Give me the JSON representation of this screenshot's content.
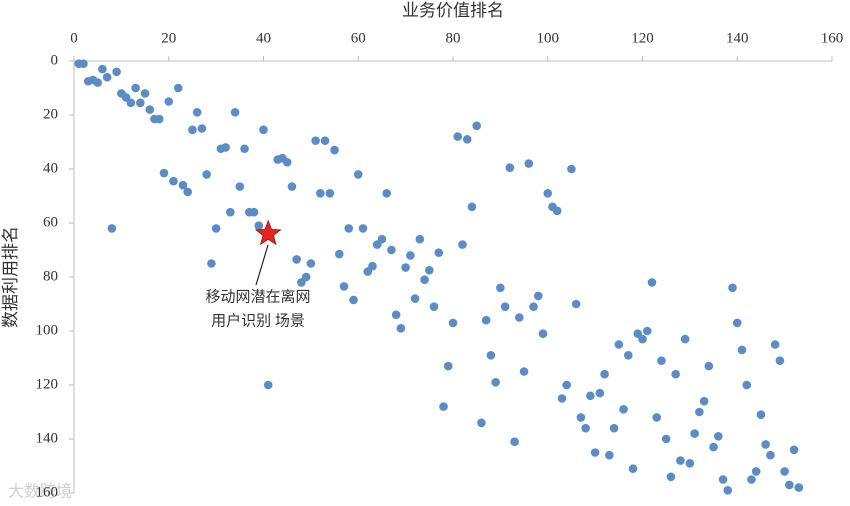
{
  "chart_data": {
    "type": "scatter",
    "xlabel": "业务价值排名",
    "ylabel": "数据利用排名",
    "xlim": [
      0,
      160
    ],
    "ylim": [
      0,
      160
    ],
    "y_reversed": true,
    "x_axis_position": "top",
    "xticks": [
      0,
      20,
      40,
      60,
      80,
      100,
      120,
      140,
      160
    ],
    "yticks": [
      0,
      20,
      40,
      60,
      80,
      100,
      120,
      140,
      160
    ],
    "grid": false,
    "series": [
      {
        "color": "#5b8cc6",
        "marker": "circle",
        "x": [
          1,
          2,
          3,
          4,
          5,
          6,
          7,
          8,
          9,
          10,
          11,
          12,
          13,
          14,
          15,
          16,
          17,
          18,
          19,
          20,
          21,
          22,
          23,
          24,
          25,
          26,
          27,
          28,
          29,
          30,
          31,
          32,
          33,
          34,
          35,
          36,
          37,
          38,
          39,
          40,
          41,
          43,
          44,
          45,
          46,
          47,
          48,
          49,
          50,
          51,
          52,
          53,
          54,
          55,
          56,
          57,
          58,
          59,
          60,
          61,
          62,
          63,
          64,
          65,
          66,
          67,
          68,
          69,
          70,
          71,
          72,
          73,
          74,
          75,
          76,
          77,
          78,
          79,
          80,
          81,
          82,
          83,
          84,
          85,
          86,
          87,
          88,
          89,
          90,
          91,
          92,
          93,
          94,
          95,
          96,
          97,
          98,
          99,
          100,
          101,
          102,
          103,
          104,
          105,
          106,
          107,
          108,
          109,
          110,
          111,
          112,
          113,
          114,
          115,
          116,
          117,
          118,
          119,
          120,
          121,
          122,
          123,
          124,
          125,
          126,
          127,
          128,
          129,
          130,
          131,
          132,
          133,
          134,
          135,
          136,
          137,
          138,
          139,
          140,
          141,
          142,
          143,
          144,
          145,
          146,
          147,
          148,
          149,
          150,
          151,
          152,
          153
        ],
        "values": [
          1,
          1,
          7.5,
          7,
          8,
          3,
          6,
          62,
          4,
          12,
          13.5,
          15.5,
          10,
          15.5,
          12,
          18,
          21.5,
          21.5,
          41.5,
          15,
          44.5,
          10,
          46,
          48.5,
          25.5,
          19,
          25,
          42,
          75,
          62,
          32.5,
          32,
          56,
          19,
          46.5,
          32.5,
          56,
          56,
          61,
          25.5,
          120,
          36.5,
          36,
          37.5,
          46.5,
          73.5,
          82,
          80,
          75,
          29.5,
          49,
          29.5,
          49,
          33,
          71.5,
          83.5,
          62,
          88.5,
          42,
          62,
          78,
          76,
          68,
          66,
          49,
          70,
          94,
          99,
          76.5,
          72,
          88,
          66,
          81,
          77.5,
          91,
          71,
          128,
          113,
          97,
          28,
          68,
          29,
          54,
          24,
          134,
          96,
          109,
          119,
          84,
          91,
          39.5,
          141,
          95,
          115,
          38,
          91,
          87,
          101,
          49,
          54,
          55.5,
          125,
          120,
          40,
          90,
          132,
          136,
          124,
          145,
          123,
          116,
          146,
          136,
          105,
          129,
          109,
          151,
          101,
          103,
          100,
          82,
          132,
          111,
          140,
          154,
          116,
          148,
          103,
          149,
          138,
          130,
          126,
          113,
          143,
          139,
          155,
          159,
          84,
          97,
          107,
          120,
          155,
          152,
          131,
          142,
          146,
          105,
          111,
          152,
          157,
          144,
          158
        ]
      },
      {
        "color": "#e8231f",
        "marker": "star",
        "x": [
          41
        ],
        "values": [
          64
        ]
      }
    ],
    "annotation": [
      "移动网潜在离网",
      "用户识别 场景"
    ],
    "watermark": "大数跨境"
  }
}
